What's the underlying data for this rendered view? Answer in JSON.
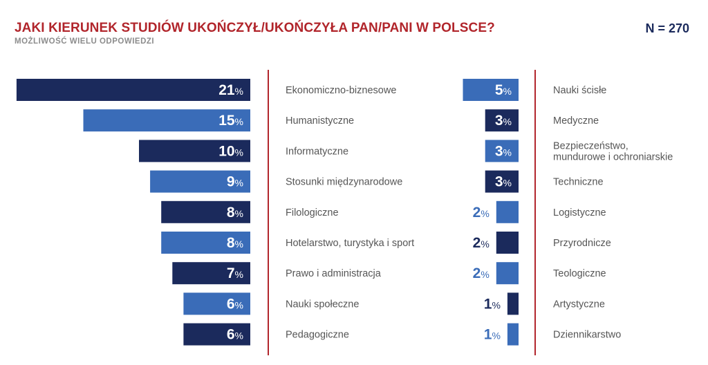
{
  "header": {
    "title": "JAKI KIERUNEK STUDIÓW UKOŃCZYŁ/UKOŃCZYŁA PAN/PANI W POLSCE?",
    "subtitle": "MOŻLIWOŚĆ WIELU ODPOWIEDZI",
    "n_label": "N = 270"
  },
  "colors": {
    "dark": "#1b2a5c",
    "light": "#3a6cb8",
    "divider": "#b1252b",
    "title": "#b1252b"
  },
  "chart_data": {
    "type": "bar",
    "title": "JAKI KIERUNEK STUDIÓW UKOŃCZYŁ/UKOŃCZYŁA PAN/PANI W POLSCE?",
    "unit": "%",
    "orientation": "horizontal",
    "left_panel": [
      {
        "category": "Ekonomiczno-biznesowe",
        "value": 21,
        "shade": "dark"
      },
      {
        "category": "Humanistyczne",
        "value": 15,
        "shade": "light"
      },
      {
        "category": "Informatyczne",
        "value": 10,
        "shade": "dark"
      },
      {
        "category": "Stosunki międzynarodowe",
        "value": 9,
        "shade": "light"
      },
      {
        "category": "Filologiczne",
        "value": 8,
        "shade": "dark"
      },
      {
        "category": "Hotelarstwo, turystyka i sport",
        "value": 8,
        "shade": "light"
      },
      {
        "category": "Prawo i administracja",
        "value": 7,
        "shade": "dark"
      },
      {
        "category": "Nauki społeczne",
        "value": 6,
        "shade": "light"
      },
      {
        "category": "Pedagogiczne",
        "value": 6,
        "shade": "dark"
      }
    ],
    "right_panel": [
      {
        "category": [
          "Nauki ścisłe"
        ],
        "value": 5,
        "shade": "light"
      },
      {
        "category": [
          "Medyczne"
        ],
        "value": 3,
        "shade": "dark"
      },
      {
        "category": [
          "Bezpieczeństwo,",
          "mundurowe i ochroniarskie"
        ],
        "value": 3,
        "shade": "light"
      },
      {
        "category": [
          "Techniczne"
        ],
        "value": 3,
        "shade": "dark"
      },
      {
        "category": [
          "Logistyczne"
        ],
        "value": 2,
        "shade": "light"
      },
      {
        "category": [
          "Przyrodnicze"
        ],
        "value": 2,
        "shade": "dark"
      },
      {
        "category": [
          "Teologiczne"
        ],
        "value": 2,
        "shade": "light"
      },
      {
        "category": [
          "Artystyczne"
        ],
        "value": 1,
        "shade": "dark"
      },
      {
        "category": [
          "Dziennikarstwo"
        ],
        "value": 1,
        "shade": "light"
      }
    ]
  }
}
